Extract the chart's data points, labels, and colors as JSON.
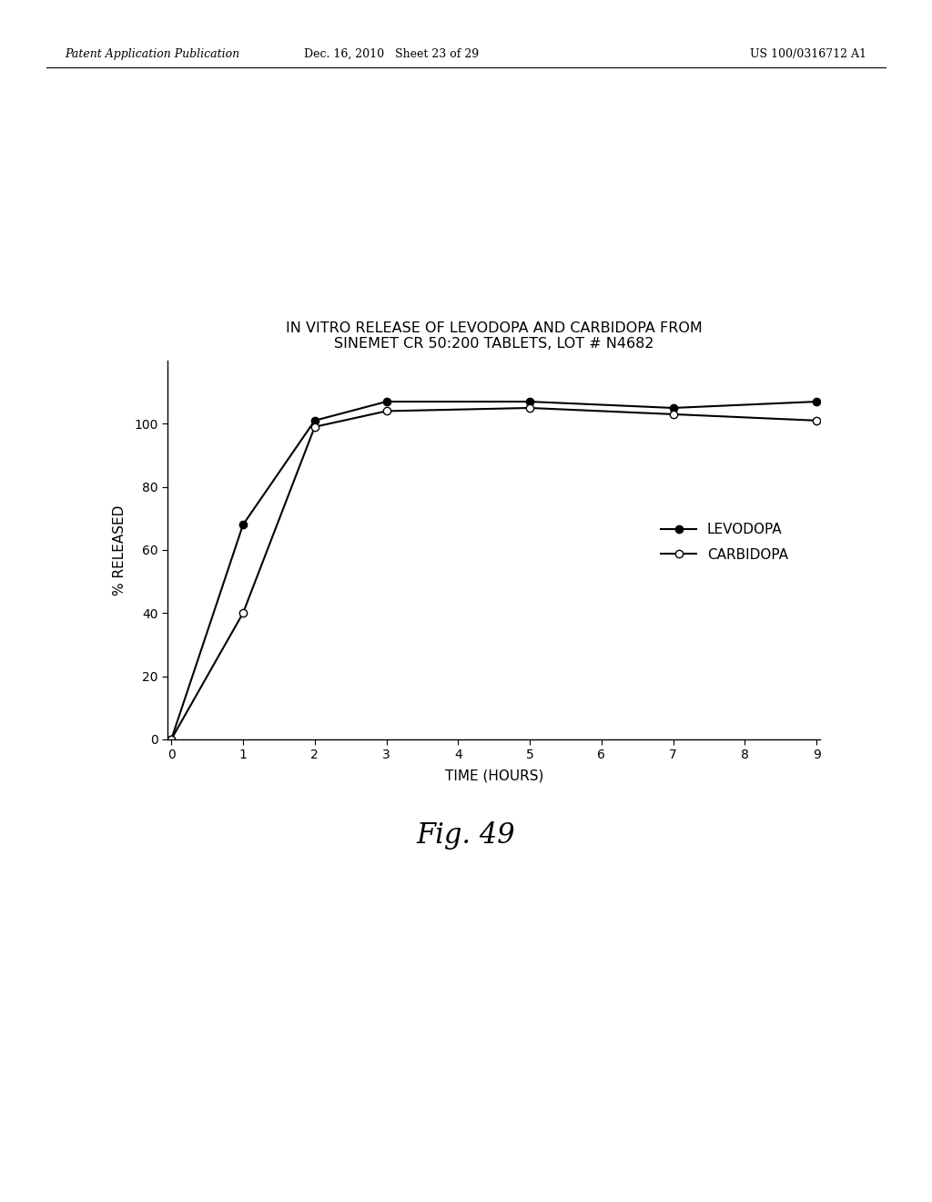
{
  "title_line1": "IN VITRO RELEASE OF LEVODOPA AND CARBIDOPA FROM",
  "title_line2": "SINEMET CR 50:200 TABLETS, LOT # N4682",
  "xlabel": "TIME (HOURS)",
  "ylabel": "% RELEASED",
  "levodopa_x": [
    0,
    1,
    2,
    3,
    5,
    7,
    9
  ],
  "levodopa_y": [
    0,
    68,
    101,
    107,
    107,
    105,
    107
  ],
  "carbidopa_x": [
    0,
    1,
    2,
    3,
    5,
    7,
    9
  ],
  "carbidopa_y": [
    0,
    40,
    99,
    104,
    105,
    103,
    101
  ],
  "xlim": [
    0,
    9
  ],
  "ylim": [
    0,
    120
  ],
  "yticks": [
    0,
    20,
    40,
    60,
    80,
    100
  ],
  "xticks": [
    0,
    1,
    2,
    3,
    4,
    5,
    6,
    7,
    8,
    9
  ],
  "levodopa_color": "#000000",
  "carbidopa_color": "#000000",
  "background_color": "#ffffff",
  "header_left": "Patent Application Publication",
  "header_center": "Dec. 16, 2010   Sheet 23 of 29",
  "header_right": "US 100/0316712 A1",
  "fig_label": "Fig. 49",
  "title_fontsize": 11.5,
  "axis_label_fontsize": 11,
  "tick_fontsize": 10,
  "legend_fontsize": 11,
  "header_fontsize": 9,
  "fig_label_fontsize": 22
}
